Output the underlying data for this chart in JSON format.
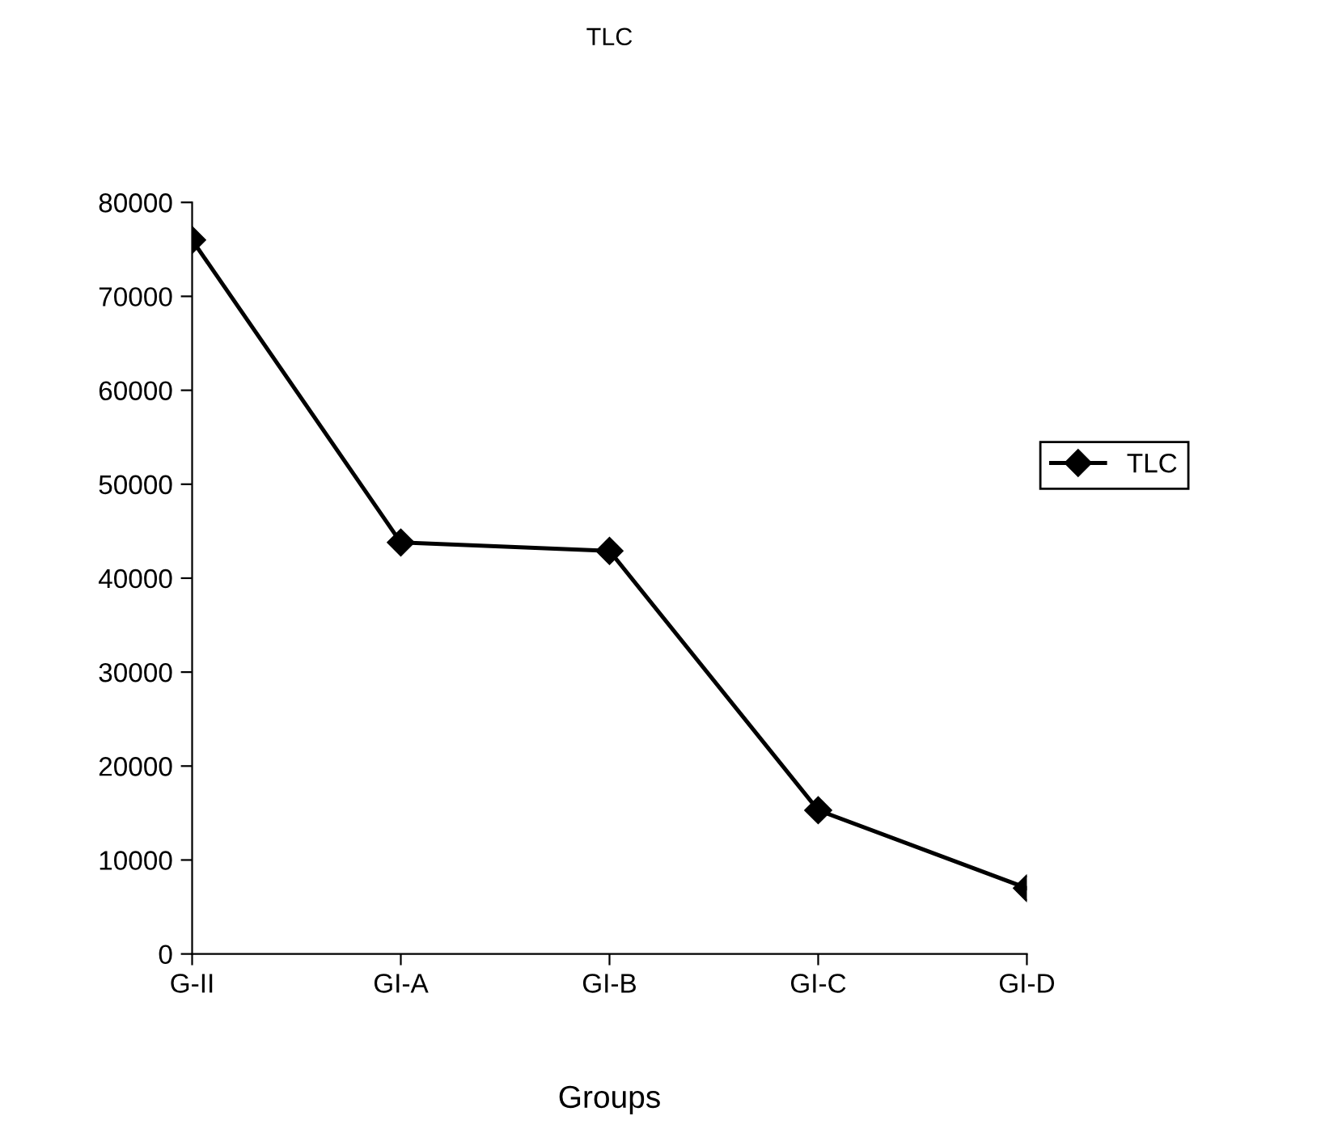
{
  "chart_data": {
    "type": "line",
    "title": "TLC",
    "xlabel": "Groups",
    "categories": [
      "G-II",
      "GI-A",
      "GI-B",
      "GI-C",
      "GI-D"
    ],
    "series": [
      {
        "name": "TLC",
        "color": "#000000",
        "values": [
          76000,
          43800,
          42900,
          15300,
          7000
        ]
      }
    ],
    "ylim": [
      0,
      80000
    ],
    "yticks": [
      0,
      10000,
      20000,
      30000,
      40000,
      50000,
      60000,
      70000,
      80000
    ],
    "marker": "diamond",
    "line_style": "solid",
    "grid": false,
    "legend": "right"
  }
}
